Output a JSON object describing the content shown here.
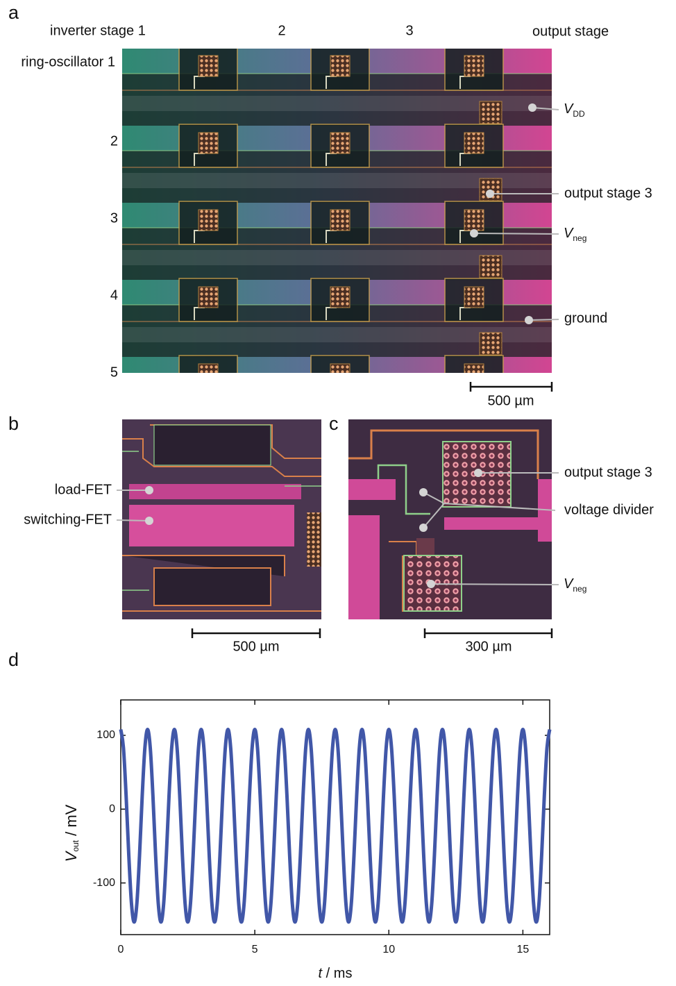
{
  "panels": {
    "a": {
      "label": "a",
      "column_labels": [
        "inverter stage 1",
        "2",
        "3",
        "output stage"
      ],
      "row_labels": [
        "ring-oscillator 1",
        "2",
        "3",
        "4",
        "5"
      ],
      "annotations": [
        {
          "symbol": "V",
          "subscript": "DD"
        },
        {
          "text": "output stage 3"
        },
        {
          "symbol": "V",
          "subscript": "neg"
        },
        {
          "text": "ground"
        }
      ],
      "scale_bar": "500 µm"
    },
    "b": {
      "label": "b",
      "annotations": [
        "load-FET",
        "switching-FET"
      ],
      "scale_bar": "500 µm"
    },
    "c": {
      "label": "c",
      "annotations": [
        {
          "text": "output stage 3"
        },
        {
          "text": "voltage divider"
        },
        {
          "symbol": "V",
          "subscript": "neg"
        }
      ],
      "scale_bar": "300 µm"
    },
    "d": {
      "label": "d"
    }
  },
  "chart_data": {
    "type": "line",
    "x_label": {
      "symbol": "t",
      "unit": " / ms"
    },
    "y_label": {
      "symbol": "V",
      "subscript": "out",
      "unit": " / mV"
    },
    "xlim": [
      0,
      16
    ],
    "xticks": [
      0,
      5,
      10,
      15
    ],
    "ylim": [
      -170,
      148
    ],
    "yticks": [
      -100,
      0,
      100
    ],
    "color": "#4157a8",
    "x": [
      0,
      0.1,
      0.2,
      0.3,
      0.4,
      0.5,
      0.6,
      0.7,
      0.8,
      0.9,
      1,
      1.1,
      1.2,
      1.3,
      1.4,
      1.5,
      1.6,
      1.7,
      1.8,
      1.9,
      2,
      2.1,
      2.2,
      2.3,
      2.4,
      2.5,
      2.6,
      2.7,
      2.8,
      2.9,
      3,
      3.1,
      3.2,
      3.3,
      3.4,
      3.5,
      3.6,
      3.7,
      3.8,
      3.9,
      4,
      4.1,
      4.2,
      4.3,
      4.4,
      4.5,
      4.6,
      4.7,
      4.8,
      4.9,
      5,
      5.1,
      5.2,
      5.3,
      5.4,
      5.5,
      5.6,
      5.7,
      5.8,
      5.9,
      6,
      6.1,
      6.2,
      6.3,
      6.4,
      6.5,
      6.6,
      6.7,
      6.8,
      6.9,
      7,
      7.1,
      7.2,
      7.3,
      7.4,
      7.5,
      7.6,
      7.7,
      7.8,
      7.9,
      8,
      8.1,
      8.2,
      8.3,
      8.4,
      8.5,
      8.6,
      8.7,
      8.8,
      8.9,
      9,
      9.1,
      9.2,
      9.3,
      9.4,
      9.5,
      9.6,
      9.7,
      9.8,
      9.9,
      10,
      10.1,
      10.2,
      10.3,
      10.4,
      10.5,
      10.6,
      10.7,
      10.8,
      10.9,
      11,
      11.1,
      11.2,
      11.3,
      11.4,
      11.5,
      11.6,
      11.7,
      11.8,
      11.9,
      12,
      12.1,
      12.2,
      12.3,
      12.4,
      12.5,
      12.6,
      12.7,
      12.8,
      12.9,
      13,
      13.1,
      13.2,
      13.3,
      13.4,
      13.5,
      13.6,
      13.7,
      13.8,
      13.9,
      14,
      14.1,
      14.2,
      14.3,
      14.4,
      14.5,
      14.6,
      14.7,
      14.8,
      14.9,
      15,
      15.1,
      15.2,
      15.3,
      15.4,
      15.5,
      15.6,
      15.7,
      15.8,
      15.9,
      16
    ],
    "values": [
      108,
      83.1,
      17.8,
      -62.8,
      -128.1,
      -153,
      -128.1,
      -62.8,
      17.8,
      83.1,
      108,
      83.1,
      17.8,
      -62.8,
      -128.1,
      -153,
      -128.1,
      -62.8,
      17.8,
      83.1,
      108,
      83.1,
      17.8,
      -62.8,
      -128.1,
      -153,
      -128.1,
      -62.8,
      17.8,
      83.1,
      108,
      83.1,
      17.8,
      -62.8,
      -128.1,
      -153,
      -128.1,
      -62.8,
      17.8,
      83.1,
      108,
      83.1,
      17.8,
      -62.8,
      -128.1,
      -153,
      -128.1,
      -62.8,
      17.8,
      83.1,
      108,
      83.1,
      17.8,
      -62.8,
      -128.1,
      -153,
      -128.1,
      -62.8,
      17.8,
      83.1,
      108,
      83.1,
      17.8,
      -62.8,
      -128.1,
      -153,
      -128.1,
      -62.8,
      17.8,
      83.1,
      108,
      83.1,
      17.8,
      -62.8,
      -128.1,
      -153,
      -128.1,
      -62.8,
      17.8,
      83.1,
      108,
      83.1,
      17.8,
      -62.8,
      -128.1,
      -153,
      -128.1,
      -62.8,
      17.8,
      83.1,
      108,
      83.1,
      17.8,
      -62.8,
      -128.1,
      -153,
      -128.1,
      -62.8,
      17.8,
      83.1,
      108,
      83.1,
      17.8,
      -62.8,
      -128.1,
      -153,
      -128.1,
      -62.8,
      17.8,
      83.1,
      108,
      83.1,
      17.8,
      -62.8,
      -128.1,
      -153,
      -128.1,
      -62.8,
      17.8,
      83.1,
      108,
      83.1,
      17.8,
      -62.8,
      -128.1,
      -153,
      -128.1,
      -62.8,
      17.8,
      83.1,
      108,
      83.1,
      17.8,
      -62.8,
      -128.1,
      -153,
      -128.1,
      -62.8,
      17.8,
      83.1,
      108,
      83.1,
      17.8,
      -62.8,
      -128.1,
      -153,
      -128.1,
      -62.8,
      17.8,
      83.1,
      108,
      83.1,
      17.8,
      -62.8,
      -128.1,
      -153,
      -128.1,
      -62.8,
      17.8,
      83.1,
      108
    ]
  }
}
